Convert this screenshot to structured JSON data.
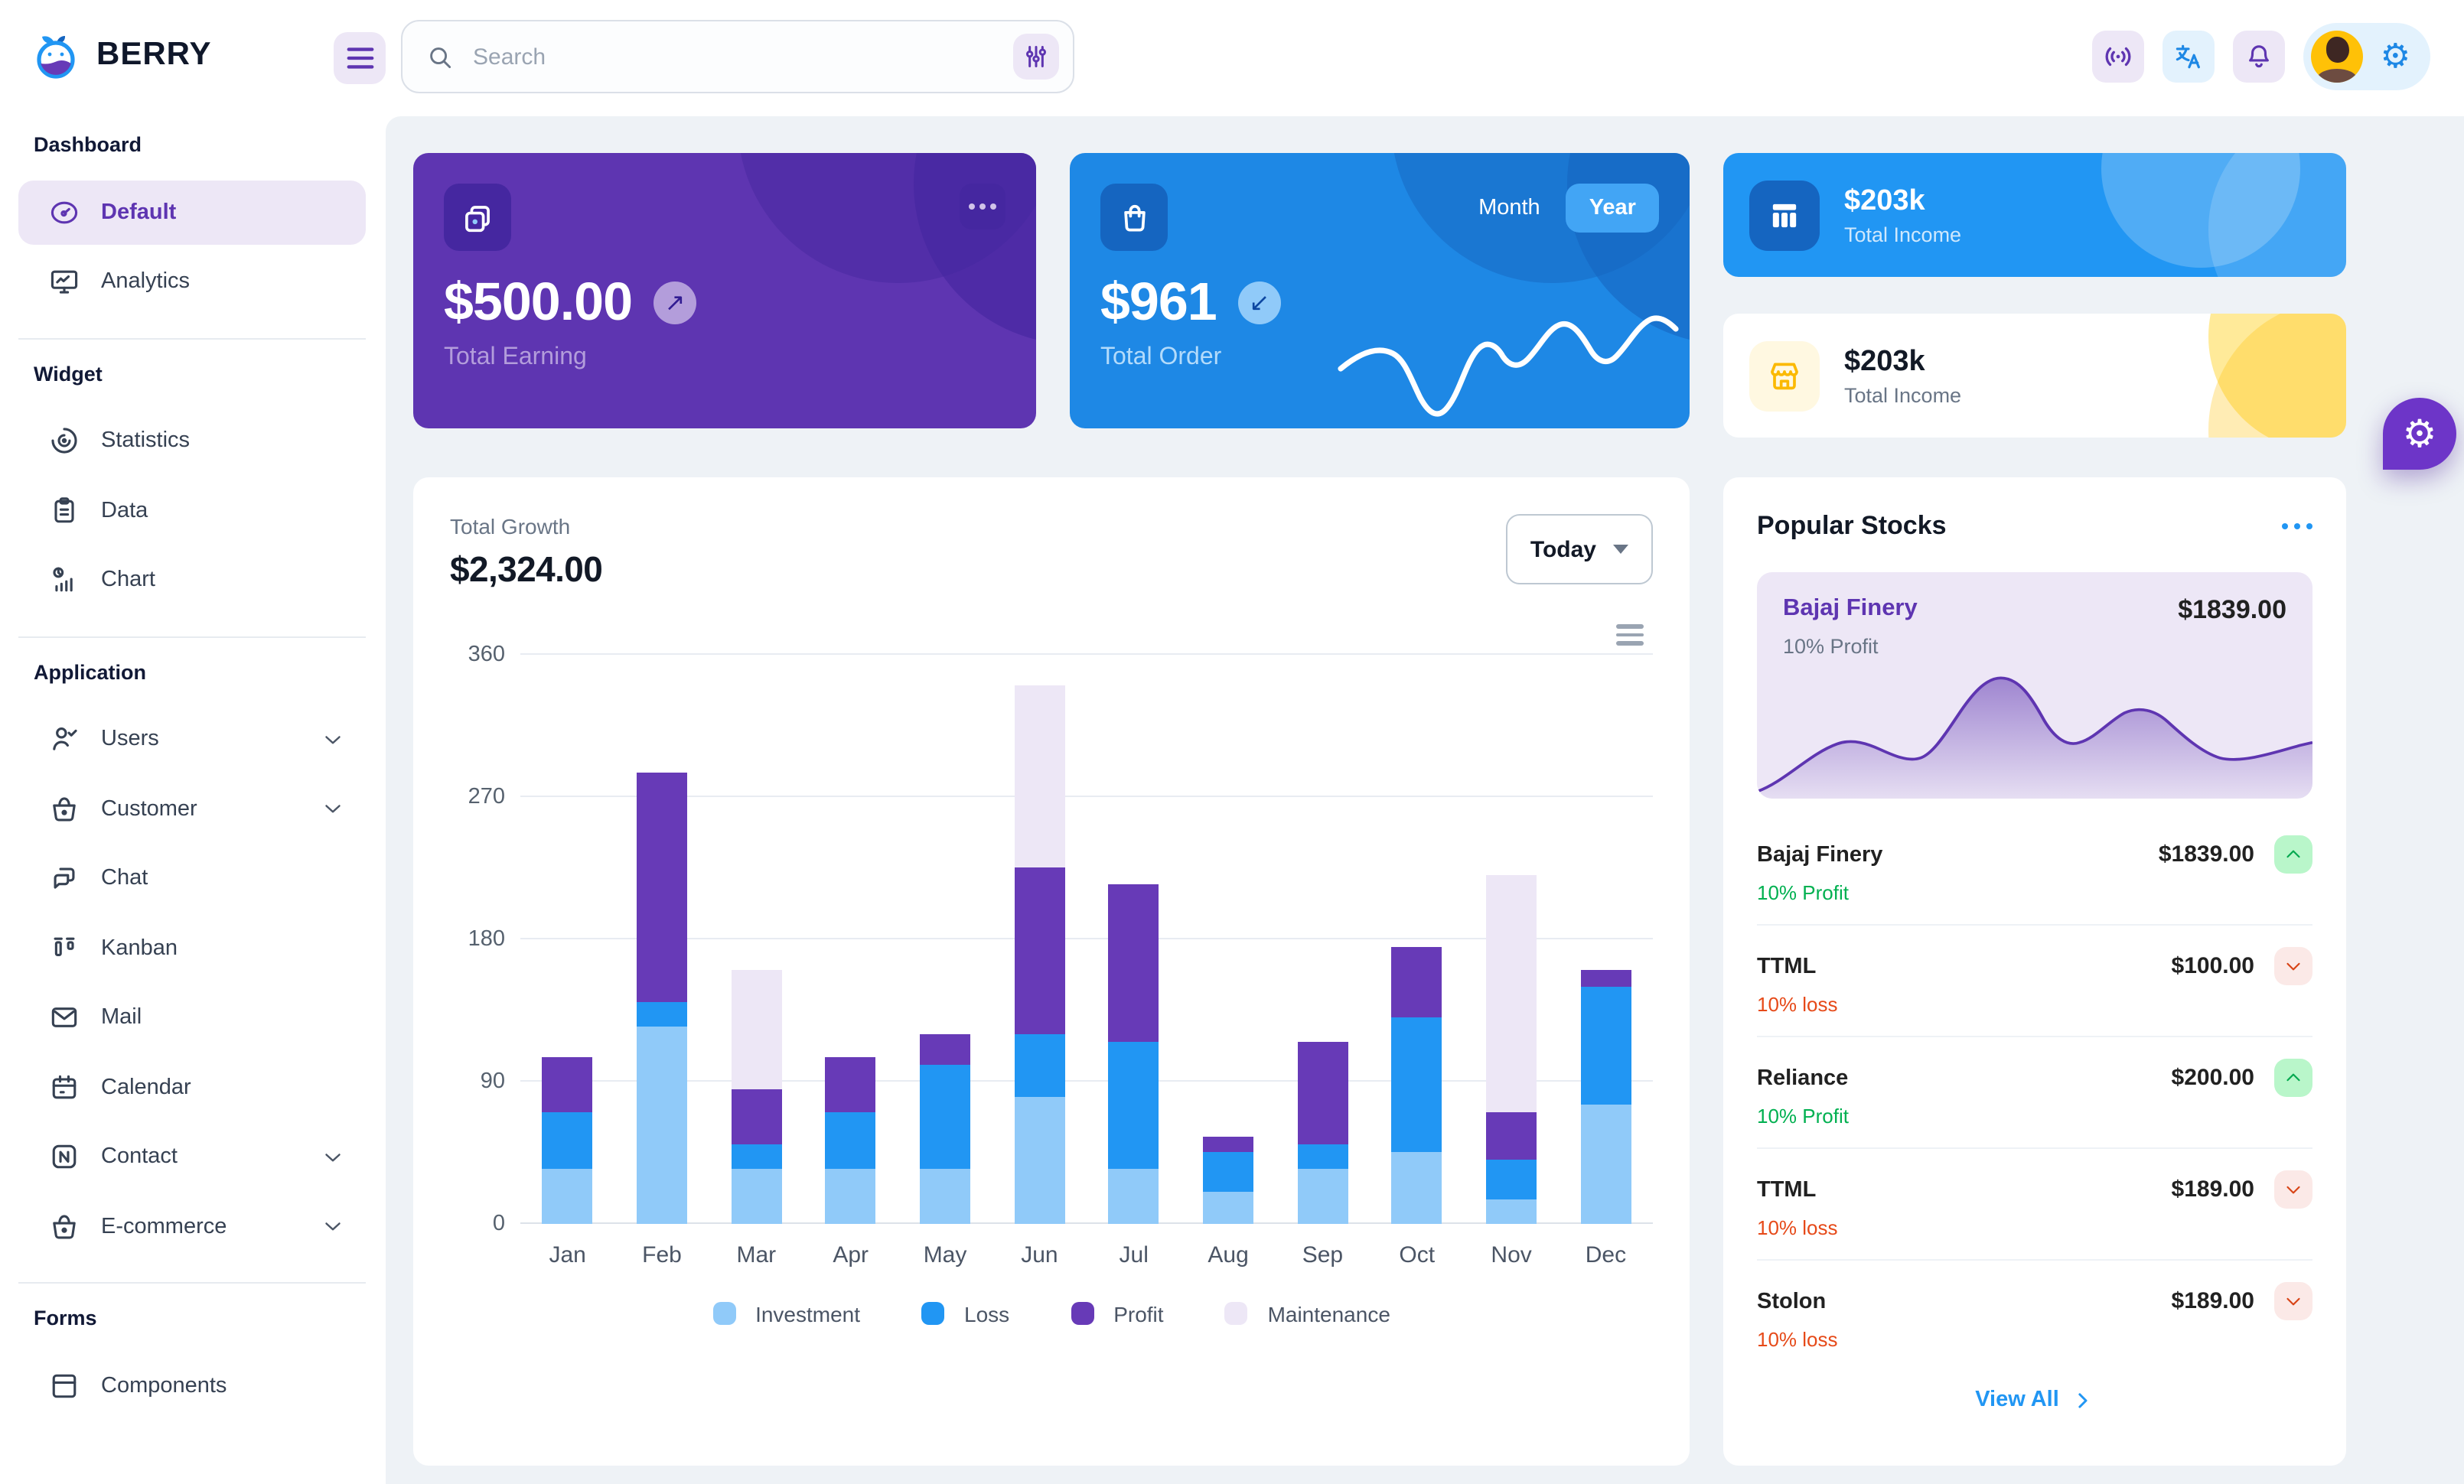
{
  "app": {
    "brand": "BERRY"
  },
  "header": {
    "search_placeholder": "Search",
    "icon_buttons": [
      "menu-icon",
      "filter-sliders-icon",
      "broadcast-icon",
      "translate-icon",
      "bell-icon",
      "gear-icon"
    ]
  },
  "sidebar": {
    "sections": [
      {
        "title": "Dashboard",
        "items": [
          {
            "label": "Default",
            "icon": "gauge",
            "active": true
          },
          {
            "label": "Analytics",
            "icon": "monitor"
          }
        ]
      },
      {
        "title": "Widget",
        "items": [
          {
            "label": "Statistics",
            "icon": "stats"
          },
          {
            "label": "Data",
            "icon": "clipboard"
          },
          {
            "label": "Chart",
            "icon": "chartbar"
          }
        ]
      },
      {
        "title": "Application",
        "items": [
          {
            "label": "Users",
            "icon": "user",
            "expandable": true
          },
          {
            "label": "Customer",
            "icon": "basket",
            "expandable": true
          },
          {
            "label": "Chat",
            "icon": "chat"
          },
          {
            "label": "Kanban",
            "icon": "kanban"
          },
          {
            "label": "Mail",
            "icon": "mail"
          },
          {
            "label": "Calendar",
            "icon": "calendar"
          },
          {
            "label": "Contact",
            "icon": "contact",
            "expandable": true
          },
          {
            "label": "E-commerce",
            "icon": "basket",
            "expandable": true
          }
        ]
      },
      {
        "title": "Forms",
        "items": [
          {
            "label": "Components",
            "icon": "components"
          }
        ]
      }
    ]
  },
  "cards": {
    "earning": {
      "value": "$500.00",
      "label": "Total Earning",
      "trend": "up"
    },
    "order": {
      "value": "$961",
      "label": "Total Order",
      "toggle": [
        "Month",
        "Year"
      ],
      "selected": "Year",
      "trend": "down"
    },
    "income_blue": {
      "value": "$203k",
      "label": "Total Income"
    },
    "income_yellow": {
      "value": "$203k",
      "label": "Total Income"
    }
  },
  "growth": {
    "title": "Total Growth",
    "value": "$2,324.00",
    "period": "Today"
  },
  "stocks": {
    "title": "Popular Stocks",
    "featured": {
      "name": "Bajaj Finery",
      "price": "$1839.00",
      "change": "10% Profit"
    },
    "items": [
      {
        "name": "Bajaj Finery",
        "price": "$1839.00",
        "change": "10% Profit",
        "direction": "up"
      },
      {
        "name": "TTML",
        "price": "$100.00",
        "change": "10% loss",
        "direction": "down"
      },
      {
        "name": "Reliance",
        "price": "$200.00",
        "change": "10% Profit",
        "direction": "up"
      },
      {
        "name": "TTML",
        "price": "$189.00",
        "change": "10% loss",
        "direction": "down"
      },
      {
        "name": "Stolon",
        "price": "$189.00",
        "change": "10% loss",
        "direction": "down"
      }
    ],
    "view_all": "View All"
  },
  "chart_data": [
    {
      "type": "bar",
      "stacked": true,
      "title": "Total Growth",
      "categories": [
        "Jan",
        "Feb",
        "Mar",
        "Apr",
        "May",
        "Jun",
        "Jul",
        "Aug",
        "Sep",
        "Oct",
        "Nov",
        "Dec"
      ],
      "series": [
        {
          "name": "Investment",
          "color": "#90caf9",
          "values": [
            35,
            125,
            35,
            35,
            35,
            80,
            35,
            20,
            35,
            45,
            15,
            75
          ]
        },
        {
          "name": "Loss",
          "color": "#2196f3",
          "values": [
            35,
            15,
            15,
            35,
            65,
            40,
            80,
            25,
            15,
            85,
            25,
            75
          ]
        },
        {
          "name": "Profit",
          "color": "#673ab7",
          "values": [
            35,
            145,
            35,
            35,
            20,
            105,
            100,
            10,
            65,
            45,
            30,
            10
          ]
        },
        {
          "name": "Maintenance",
          "color": "#ede7f6",
          "values": [
            0,
            0,
            75,
            0,
            0,
            115,
            0,
            0,
            0,
            0,
            150,
            0
          ]
        }
      ],
      "xlabel": "",
      "ylabel": "",
      "ylim": [
        0,
        360
      ],
      "yticks": [
        0,
        90,
        180,
        270,
        360
      ],
      "grid": true,
      "legend_position": "bottom"
    },
    {
      "type": "area",
      "title": "Bajaj Finery trend sparkline",
      "values": [
        5,
        30,
        48,
        42,
        36,
        60,
        100,
        70,
        48,
        55,
        68,
        58,
        44,
        38,
        40
      ],
      "color": "#5e35b1"
    },
    {
      "type": "line",
      "title": "Total Order yearly trend sparkline",
      "values": [
        45,
        55,
        30,
        10,
        45,
        62,
        55,
        78,
        60,
        55,
        85
      ],
      "color": "#ffffff"
    }
  ],
  "colors": {
    "primary_blue": "#2196f3",
    "secondary_purple": "#5e35b1",
    "purple_dark": "#4527a0",
    "blue_dark": "#1e88e5",
    "blue_800": "#1565c0",
    "light_purple_bg": "#ede7f6",
    "light_blue_bg": "#e3f2fd",
    "success_green": "#00b050",
    "loss_orange": "#e64a19",
    "warning_yellow": "#ffc107",
    "page_bg": "#eef2f6"
  }
}
